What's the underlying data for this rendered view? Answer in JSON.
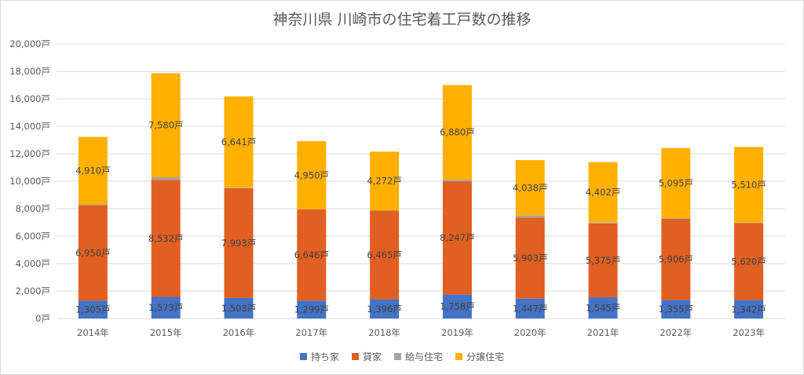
{
  "chart_data": {
    "type": "bar",
    "stacked": true,
    "title": "神奈川県 川崎市の住宅着工戸数の推移",
    "categories": [
      "2014年",
      "2015年",
      "2016年",
      "2017年",
      "2018年",
      "2019年",
      "2020年",
      "2021年",
      "2022年",
      "2023年"
    ],
    "series": [
      {
        "name": "持ち家",
        "color": "#4472C4",
        "values": [
          1305,
          1573,
          1503,
          1299,
          1396,
          1758,
          1447,
          1545,
          1355,
          1342
        ],
        "labels": [
          "1,305戸",
          "1,573戸",
          "1,503戸",
          "1,299戸",
          "1,396戸",
          "1,758戸",
          "1,447戸",
          "1,545戸",
          "1,355戸",
          "1,342戸"
        ]
      },
      {
        "name": "貸家",
        "color": "#E15F21",
        "values": [
          6950,
          8532,
          7993,
          6646,
          6465,
          8247,
          5903,
          5375,
          5906,
          5620
        ],
        "labels": [
          "6,950戸",
          "8,532戸",
          "7,993戸",
          "6,646戸",
          "6,465戸",
          "8,247戸",
          "5,903戸",
          "5,375戸",
          "5,906戸",
          "5,620戸"
        ]
      },
      {
        "name": "給与住宅",
        "color": "#A5A5A5",
        "values": [
          60,
          180,
          40,
          20,
          20,
          120,
          150,
          70,
          60,
          30
        ],
        "labels": []
      },
      {
        "name": "分譲住宅",
        "color": "#FFB000",
        "values": [
          4910,
          7580,
          6641,
          4950,
          4272,
          6880,
          4038,
          4402,
          5095,
          5510
        ],
        "labels": [
          "4,910戸",
          "7,580戸",
          "6,641戸",
          "4,950戸",
          "4,272戸",
          "6,880戸",
          "4,038戸",
          "4,402戸",
          "5,095戸",
          "5,510戸"
        ]
      }
    ],
    "ylim": [
      0,
      20000
    ],
    "yticks": [
      0,
      2000,
      4000,
      6000,
      8000,
      10000,
      12000,
      14000,
      16000,
      18000,
      20000
    ],
    "ytick_labels": [
      "0戸",
      "2,000戸",
      "4,000戸",
      "6,000戸",
      "8,000戸",
      "10,000戸",
      "12,000戸",
      "14,000戸",
      "16,000戸",
      "18,000戸",
      "20,000戸"
    ],
    "grid": true,
    "legend": "bottom"
  }
}
